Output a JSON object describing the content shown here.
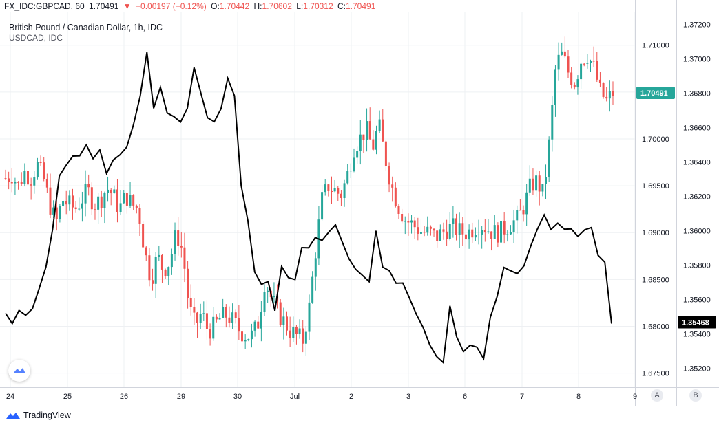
{
  "header": {
    "symbol": "FX_IDC:GBPCAD, 60",
    "last": "1.70491",
    "change": "−0.00197 (−0.12%)",
    "open_label": "O:",
    "open": "1.70442",
    "high_label": "H:",
    "high": "1.70602",
    "low_label": "L:",
    "low": "1.70312",
    "close_label": "C:",
    "close": "1.70491",
    "down_arrow": "▼"
  },
  "legend": {
    "main": "British Pound / Canadian Dollar, 1h, IDC",
    "compare": "USDCAD, IDC"
  },
  "brand": "TradingView",
  "scale_buttons": {
    "a": "A",
    "b": "B"
  },
  "colors": {
    "up": "#26a69a",
    "down": "#ef5350",
    "compare_line": "#000000",
    "grid": "#eef0f3"
  },
  "icons": [
    "down-arrow-icon",
    "tradingview-logo-icon"
  ],
  "chart_data": {
    "type": "line",
    "x_ticks": [
      "24",
      "25",
      "26",
      "29",
      "30",
      "Jul",
      "2",
      "3",
      "6",
      "7",
      "8",
      "9"
    ],
    "left_axis": {
      "name": "GBPCAD",
      "range": [
        1.6735,
        1.7135
      ],
      "ticks": [
        "1.67500",
        "1.68000",
        "1.68500",
        "1.69000",
        "1.69500",
        "1.70000",
        "1.70500",
        "1.71000"
      ],
      "last_label": "1.70491"
    },
    "right_axis": {
      "name": "USDCAD",
      "range": [
        1.3509,
        1.3727
      ],
      "ticks": [
        "1.35200",
        "1.35400",
        "1.35600",
        "1.35800",
        "1.36000",
        "1.36200",
        "1.36400",
        "1.36600",
        "1.36800",
        "1.37000",
        "1.37200"
      ],
      "last_label": "1.35468"
    },
    "series": [
      {
        "type": "candlestick",
        "axis": "left",
        "close_path": [
          [
            0,
            1.6958
          ],
          [
            1,
            1.6962
          ],
          [
            2,
            1.695
          ],
          [
            3,
            1.6965
          ],
          [
            4,
            1.6958
          ],
          [
            5,
            1.6972
          ],
          [
            6,
            1.6958
          ],
          [
            7,
            1.693
          ],
          [
            8,
            1.691
          ],
          [
            9,
            1.6935
          ],
          [
            10,
            1.693
          ],
          [
            11,
            1.6925
          ],
          [
            12,
            1.6935
          ],
          [
            13,
            1.6945
          ],
          [
            14,
            1.693
          ],
          [
            15,
            1.6935
          ],
          [
            16,
            1.6948
          ],
          [
            17,
            1.694
          ],
          [
            18,
            1.6925
          ],
          [
            19,
            1.694
          ],
          [
            20,
            1.693
          ],
          [
            21,
            1.6925
          ],
          [
            22,
            1.688
          ],
          [
            23,
            1.685
          ],
          [
            24,
            1.6875
          ],
          [
            25,
            1.686
          ],
          [
            26,
            1.687
          ],
          [
            27,
            1.69
          ],
          [
            28,
            1.688
          ],
          [
            29,
            1.682
          ],
          [
            30,
            1.68
          ],
          [
            31,
            1.6815
          ],
          [
            32,
            1.6795
          ],
          [
            33,
            1.68
          ],
          [
            34,
            1.681
          ],
          [
            35,
            1.6812
          ],
          [
            36,
            1.6805
          ],
          [
            37,
            1.6795
          ],
          [
            38,
            1.679
          ],
          [
            39,
            1.679
          ],
          [
            40,
            1.6805
          ],
          [
            41,
            1.685
          ],
          [
            42,
            1.683
          ],
          [
            43,
            1.6815
          ],
          [
            44,
            1.6805
          ],
          [
            45,
            1.6795
          ],
          [
            46,
            1.679
          ],
          [
            47,
            1.6785
          ],
          [
            48,
            1.682
          ],
          [
            49,
            1.688
          ],
          [
            50,
            1.6935
          ],
          [
            51,
            1.695
          ],
          [
            52,
            1.6945
          ],
          [
            53,
            1.694
          ],
          [
            54,
            1.696
          ],
          [
            55,
            1.699
          ],
          [
            56,
            1.7
          ],
          [
            57,
            1.701
          ],
          [
            58,
            1.699
          ],
          [
            59,
            1.7015
          ],
          [
            60,
            1.698
          ],
          [
            61,
            1.695
          ],
          [
            62,
            1.693
          ],
          [
            63,
            1.6915
          ],
          [
            64,
            1.691
          ],
          [
            65,
            1.6905
          ],
          [
            66,
            1.69
          ],
          [
            67,
            1.69
          ],
          [
            68,
            1.6895
          ],
          [
            69,
            1.69
          ],
          [
            70,
            1.6905
          ],
          [
            71,
            1.6905
          ],
          [
            72,
            1.69
          ],
          [
            73,
            1.69
          ],
          [
            74,
            1.6905
          ],
          [
            75,
            1.691
          ],
          [
            76,
            1.6905
          ],
          [
            77,
            1.69
          ],
          [
            78,
            1.69
          ],
          [
            79,
            1.6905
          ],
          [
            80,
            1.691
          ],
          [
            81,
            1.6915
          ],
          [
            82,
            1.693
          ],
          [
            83,
            1.695
          ],
          [
            84,
            1.6955
          ],
          [
            85,
            1.694
          ],
          [
            86,
            1.7
          ],
          [
            87,
            1.708
          ],
          [
            88,
            1.709
          ],
          [
            89,
            1.707
          ],
          [
            90,
            1.706
          ],
          [
            91,
            1.7085
          ],
          [
            92,
            1.709
          ],
          [
            93,
            1.7075
          ],
          [
            94,
            1.705
          ],
          [
            95,
            1.704
          ],
          [
            96,
            1.7049
          ]
        ]
      },
      {
        "type": "line",
        "axis": "right",
        "name": "USDCAD",
        "values": [
          [
            0,
            1.3552
          ],
          [
            1,
            1.3545
          ],
          [
            2,
            1.3552
          ],
          [
            3,
            1.355
          ],
          [
            4,
            1.3555
          ],
          [
            5,
            1.3565
          ],
          [
            6,
            1.3578
          ],
          [
            7,
            1.36
          ],
          [
            8,
            1.363
          ],
          [
            9,
            1.364
          ],
          [
            10,
            1.3645
          ],
          [
            11,
            1.3643
          ],
          [
            12,
            1.3648
          ],
          [
            13,
            1.364
          ],
          [
            14,
            1.3648
          ],
          [
            15,
            1.3635
          ],
          [
            16,
            1.364
          ],
          [
            17,
            1.3645
          ],
          [
            18,
            1.3648
          ],
          [
            19,
            1.366
          ],
          [
            20,
            1.368
          ],
          [
            21,
            1.3705
          ],
          [
            22,
            1.367
          ],
          [
            23,
            1.3685
          ],
          [
            24,
            1.367
          ],
          [
            25,
            1.3665
          ],
          [
            26,
            1.3662
          ],
          [
            27,
            1.367
          ],
          [
            28,
            1.3695
          ],
          [
            29,
            1.368
          ],
          [
            30,
            1.3665
          ],
          [
            31,
            1.3665
          ],
          [
            32,
            1.367
          ],
          [
            33,
            1.369
          ],
          [
            34,
            1.368
          ],
          [
            35,
            1.3625
          ],
          [
            36,
            1.3605
          ],
          [
            37,
            1.3578
          ],
          [
            38,
            1.357
          ],
          [
            39,
            1.357
          ],
          [
            40,
            1.3555
          ],
          [
            41,
            1.358
          ],
          [
            42,
            1.3573
          ],
          [
            43,
            1.357
          ],
          [
            44,
            1.359
          ],
          [
            45,
            1.359
          ],
          [
            46,
            1.3595
          ],
          [
            47,
            1.3595
          ],
          [
            48,
            1.36
          ],
          [
            49,
            1.3605
          ],
          [
            50,
            1.3595
          ],
          [
            51,
            1.3585
          ],
          [
            52,
            1.3578
          ],
          [
            53,
            1.3575
          ],
          [
            54,
            1.357
          ],
          [
            55,
            1.3602
          ],
          [
            56,
            1.358
          ],
          [
            57,
            1.3575
          ],
          [
            58,
            1.357
          ],
          [
            59,
            1.357
          ],
          [
            60,
            1.356
          ],
          [
            61,
            1.355
          ],
          [
            62,
            1.3545
          ],
          [
            63,
            1.3535
          ],
          [
            64,
            1.3525
          ],
          [
            65,
            1.3525
          ],
          [
            66,
            1.3555
          ],
          [
            67,
            1.354
          ],
          [
            68,
            1.353
          ],
          [
            69,
            1.3535
          ],
          [
            70,
            1.3532
          ],
          [
            71,
            1.3525
          ],
          [
            72,
            1.355
          ],
          [
            73,
            1.356
          ],
          [
            74,
            1.358
          ],
          [
            75,
            1.3578
          ],
          [
            76,
            1.3575
          ],
          [
            77,
            1.358
          ],
          [
            78,
            1.359
          ],
          [
            79,
            1.36
          ],
          [
            80,
            1.3608
          ],
          [
            81,
            1.36
          ],
          [
            82,
            1.3606
          ],
          [
            83,
            1.36
          ],
          [
            84,
            1.3602
          ],
          [
            85,
            1.3595
          ],
          [
            86,
            1.36
          ],
          [
            87,
            1.36
          ],
          [
            88,
            1.3585
          ],
          [
            89,
            1.358
          ],
          [
            90,
            1.3546
          ]
        ]
      }
    ],
    "grid": true,
    "legend": "top-left"
  }
}
